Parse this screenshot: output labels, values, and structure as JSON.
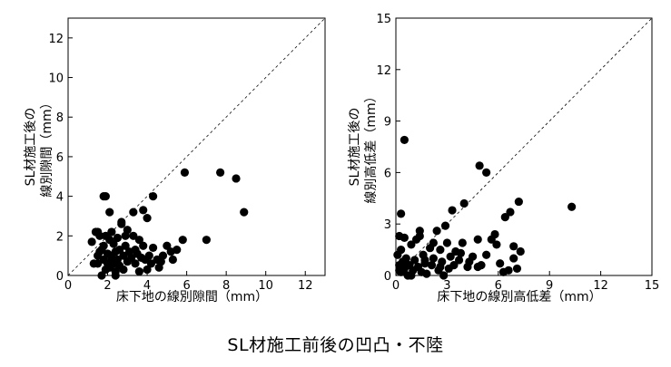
{
  "caption": "SL材施工前後の凹凸・不陸",
  "chart_data": [
    {
      "type": "scatter",
      "xlabel": "床下地の線別隙間（mm）",
      "ylabel_lines": [
        "SL材施工後の",
        "線別隙間（mm）"
      ],
      "xlim": [
        0,
        13
      ],
      "ylim": [
        0,
        13
      ],
      "xticks": [
        0,
        2,
        4,
        6,
        8,
        10,
        12
      ],
      "yticks": [
        0,
        2,
        4,
        6,
        8,
        10,
        12
      ],
      "reference_line": "y = x",
      "grid": false,
      "x": [
        1.2,
        1.3,
        1.4,
        1.5,
        1.5,
        1.6,
        1.6,
        1.7,
        1.8,
        1.8,
        1.9,
        1.9,
        2.0,
        2.0,
        2.1,
        2.1,
        2.2,
        2.2,
        2.3,
        2.3,
        2.4,
        2.4,
        2.5,
        2.5,
        2.6,
        2.6,
        2.7,
        2.8,
        2.8,
        2.9,
        3.0,
        3.0,
        3.1,
        3.2,
        3.3,
        3.4,
        3.4,
        3.5,
        3.6,
        3.7,
        3.8,
        3.9,
        4.0,
        4.1,
        4.2,
        4.3,
        4.5,
        4.6,
        4.8,
        5.0,
        5.2,
        5.5,
        5.8,
        1.8,
        1.9,
        2.1,
        2.7,
        3.3,
        3.8,
        4.0,
        4.3,
        5.9,
        7.0,
        7.7,
        8.5,
        8.9,
        1.5,
        2.2,
        2.9,
        3.6,
        4.7,
        5.3,
        1.7,
        2.4
      ],
      "y": [
        1.7,
        0.6,
        2.2,
        1.0,
        0.6,
        2.0,
        1.2,
        0.0,
        1.5,
        0.8,
        2.0,
        0.3,
        1.1,
        0.6,
        1.8,
        0.4,
        2.2,
        1.0,
        0.6,
        1.6,
        1.2,
        0.2,
        1.9,
        0.8,
        1.3,
        0.5,
        2.6,
        1.0,
        0.3,
        1.5,
        2.3,
        0.7,
        1.2,
        0.9,
        2.0,
        1.3,
        0.6,
        1.1,
        1.8,
        0.9,
        1.5,
        0.8,
        0.3,
        1.0,
        0.6,
        1.4,
        0.8,
        0.4,
        1.0,
        1.5,
        1.2,
        1.3,
        1.8,
        4.0,
        4.0,
        3.2,
        2.7,
        3.2,
        3.3,
        2.9,
        4.0,
        5.2,
        1.8,
        5.2,
        4.9,
        3.2,
        2.2,
        0.9,
        2.0,
        0.2,
        0.7,
        0.8,
        1.3,
        0.0
      ]
    },
    {
      "type": "scatter",
      "xlabel": "床下地の線別高低差（mm）",
      "ylabel_lines": [
        "SL材施工後の",
        "線別高低差（mm）"
      ],
      "xlim": [
        0,
        15
      ],
      "ylim": [
        0,
        15
      ],
      "xticks": [
        0,
        3,
        6,
        9,
        12,
        15
      ],
      "yticks": [
        0,
        3,
        6,
        9,
        12,
        15
      ],
      "reference_line": "y = x",
      "grid": false,
      "x": [
        0.1,
        0.2,
        0.2,
        0.3,
        0.3,
        0.4,
        0.5,
        0.5,
        0.6,
        0.7,
        0.8,
        0.9,
        1.0,
        1.1,
        1.2,
        1.3,
        1.4,
        1.5,
        1.6,
        1.7,
        1.8,
        2.0,
        2.1,
        2.2,
        2.4,
        2.5,
        2.6,
        2.7,
        2.8,
        3.0,
        3.1,
        3.2,
        3.3,
        3.4,
        3.5,
        3.7,
        3.9,
        4.0,
        4.2,
        4.5,
        4.8,
        5.0,
        5.3,
        5.6,
        5.9,
        6.1,
        6.3,
        6.6,
        6.9,
        7.1,
        7.3,
        0.5,
        0.3,
        1.4,
        2.2,
        2.9,
        3.8,
        4.8,
        4.9,
        5.3,
        6.4,
        6.7,
        7.2,
        10.3,
        0.2,
        0.9,
        1.7,
        2.6,
        4.3,
        5.8,
        6.9
      ],
      "y": [
        1.2,
        0.6,
        2.3,
        1.5,
        0.2,
        0.8,
        2.2,
        0.4,
        1.0,
        0.0,
        0.6,
        1.8,
        0.3,
        0.9,
        2.1,
        0.5,
        2.6,
        0.2,
        1.2,
        0.7,
        0.1,
        1.6,
        0.6,
        1.0,
        2.6,
        0.3,
        1.5,
        0.8,
        0.0,
        1.9,
        0.4,
        1.1,
        3.8,
        0.6,
        1.4,
        0.9,
        1.9,
        4.2,
        0.5,
        1.1,
        0.5,
        0.6,
        1.2,
        2.1,
        1.8,
        0.7,
        0.2,
        0.3,
        1.7,
        0.4,
        1.4,
        7.9,
        3.6,
        2.3,
        1.9,
        2.9,
        1.3,
        2.1,
        6.4,
        6.0,
        3.4,
        3.7,
        4.3,
        4.0,
        0.3,
        0.0,
        0.9,
        0.5,
        0.8,
        2.4,
        1.0
      ]
    }
  ]
}
